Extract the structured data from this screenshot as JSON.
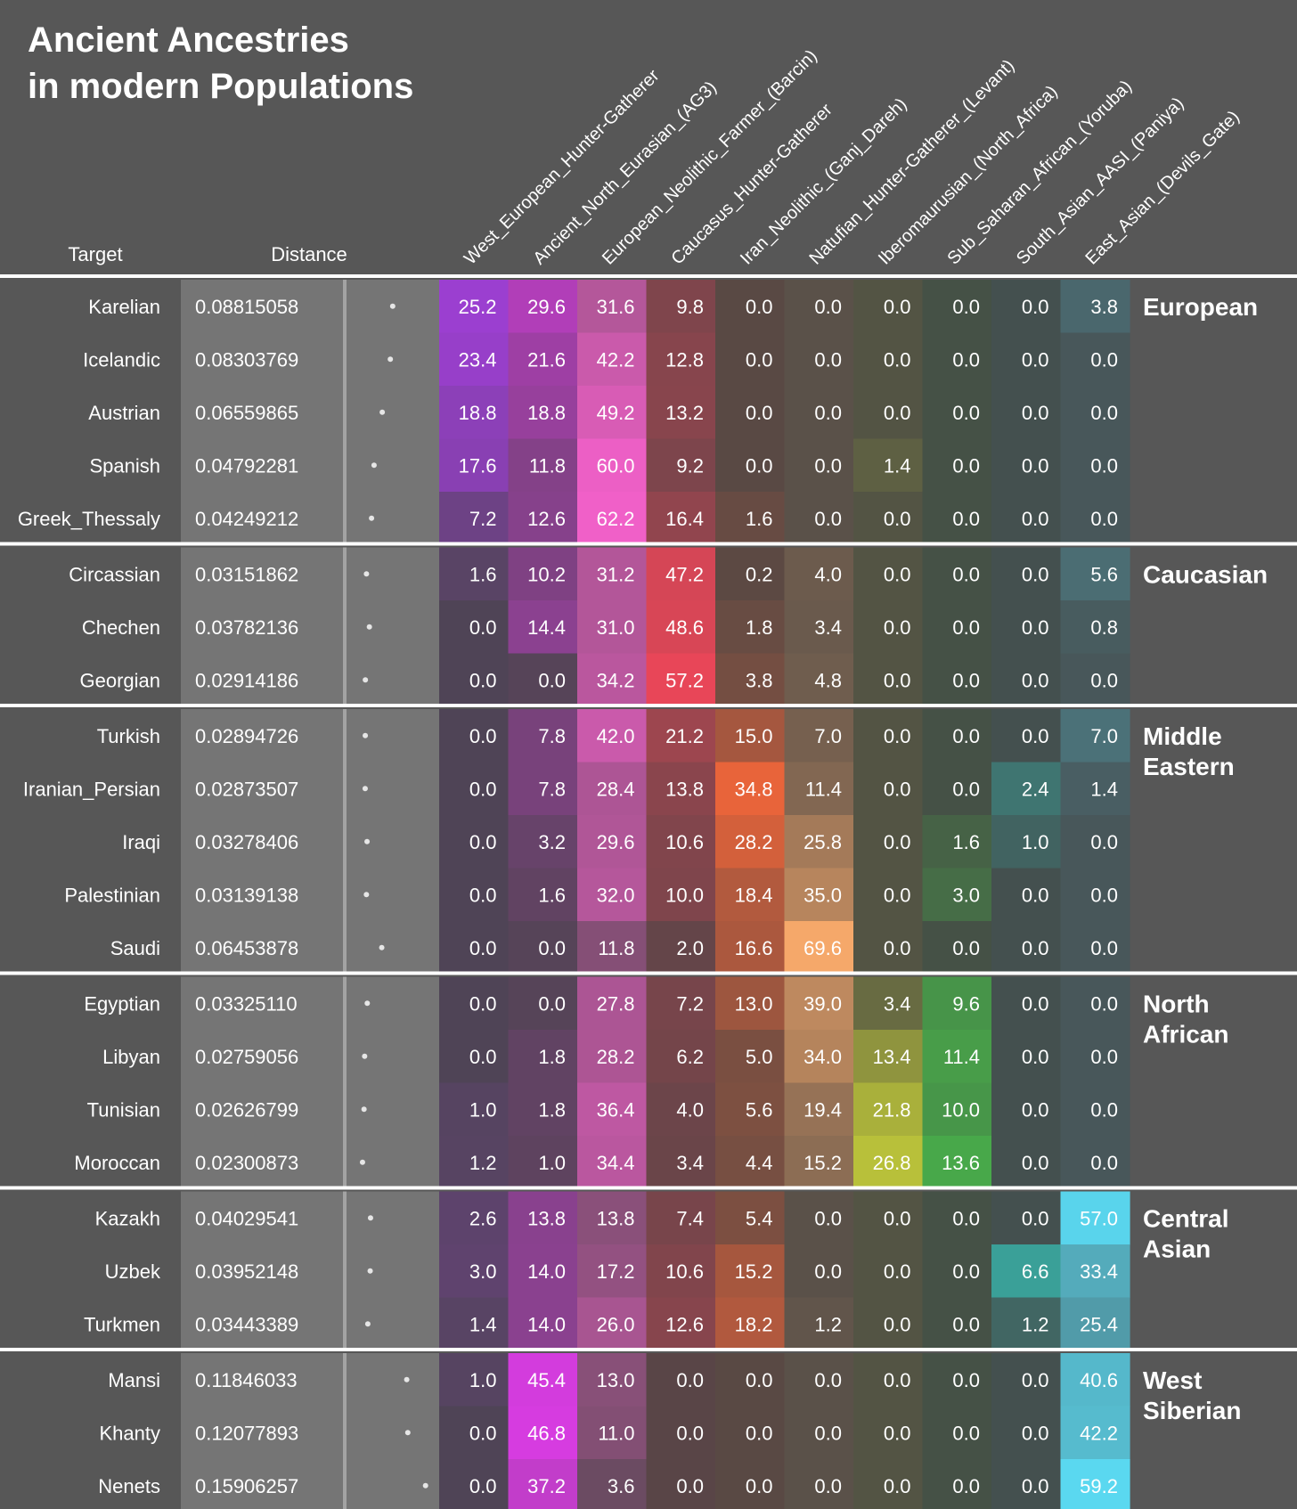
{
  "chart_data": {
    "type": "heatmap",
    "title": [
      "Ancient Ancestries",
      "in modern Populations"
    ],
    "target_header": "Target",
    "distance_header": "Distance",
    "columns": [
      "West_European_Hunter-Gatherer",
      "Ancient_North_Eurasian_(AG3)",
      "European_Neolithic_Farmer_(Barcin)",
      "Caucasus_Hunter-Gatherer",
      "Iran_Neolithic_(Ganj_Dareh)",
      "Natufian_Hunter-Gatherer_(Levant)",
      "Iberomaurusian_(North_Africa)",
      "Sub_Saharan_African_(Yoruba)",
      "South_Asian_AASI_(Paniya)",
      "East_Asian_(Devils_Gate)"
    ],
    "distance_range": [
      0,
      0.17
    ],
    "groups": [
      {
        "name": [
          "European"
        ],
        "rows": [
          {
            "target": "Karelian",
            "distance": "0.08815058",
            "values": [
              25.2,
              29.6,
              31.6,
              9.8,
              0.0,
              0.0,
              0.0,
              0.0,
              0.0,
              3.8
            ]
          },
          {
            "target": "Icelandic",
            "distance": "0.08303769",
            "values": [
              23.4,
              21.6,
              42.2,
              12.8,
              0.0,
              0.0,
              0.0,
              0.0,
              0.0,
              0.0
            ]
          },
          {
            "target": "Austrian",
            "distance": "0.06559865",
            "values": [
              18.8,
              18.8,
              49.2,
              13.2,
              0.0,
              0.0,
              0.0,
              0.0,
              0.0,
              0.0
            ]
          },
          {
            "target": "Spanish",
            "distance": "0.04792281",
            "values": [
              17.6,
              11.8,
              60.0,
              9.2,
              0.0,
              0.0,
              1.4,
              0.0,
              0.0,
              0.0
            ]
          },
          {
            "target": "Greek_Thessaly",
            "distance": "0.04249212",
            "values": [
              7.2,
              12.6,
              62.2,
              16.4,
              1.6,
              0.0,
              0.0,
              0.0,
              0.0,
              0.0
            ]
          }
        ]
      },
      {
        "name": [
          "Caucasian"
        ],
        "rows": [
          {
            "target": "Circassian",
            "distance": "0.03151862",
            "values": [
              1.6,
              10.2,
              31.2,
              47.2,
              0.2,
              4.0,
              0.0,
              0.0,
              0.0,
              5.6
            ]
          },
          {
            "target": "Chechen",
            "distance": "0.03782136",
            "values": [
              0.0,
              14.4,
              31.0,
              48.6,
              1.8,
              3.4,
              0.0,
              0.0,
              0.0,
              0.8
            ]
          },
          {
            "target": "Georgian",
            "distance": "0.02914186",
            "values": [
              0.0,
              0.0,
              34.2,
              57.2,
              3.8,
              4.8,
              0.0,
              0.0,
              0.0,
              0.0
            ]
          }
        ]
      },
      {
        "name": [
          "Middle",
          "Eastern"
        ],
        "rows": [
          {
            "target": "Turkish",
            "distance": "0.02894726",
            "values": [
              0.0,
              7.8,
              42.0,
              21.2,
              15.0,
              7.0,
              0.0,
              0.0,
              0.0,
              7.0
            ]
          },
          {
            "target": "Iranian_Persian",
            "distance": "0.02873507",
            "values": [
              0.0,
              7.8,
              28.4,
              13.8,
              34.8,
              11.4,
              0.0,
              0.0,
              2.4,
              1.4
            ]
          },
          {
            "target": "Iraqi",
            "distance": "0.03278406",
            "values": [
              0.0,
              3.2,
              29.6,
              10.6,
              28.2,
              25.8,
              0.0,
              1.6,
              1.0,
              0.0
            ]
          },
          {
            "target": "Palestinian",
            "distance": "0.03139138",
            "values": [
              0.0,
              1.6,
              32.0,
              10.0,
              18.4,
              35.0,
              0.0,
              3.0,
              0.0,
              0.0
            ]
          },
          {
            "target": "Saudi",
            "distance": "0.06453878",
            "values": [
              0.0,
              0.0,
              11.8,
              2.0,
              16.6,
              69.6,
              0.0,
              0.0,
              0.0,
              0.0
            ]
          }
        ]
      },
      {
        "name": [
          "North",
          "African"
        ],
        "rows": [
          {
            "target": "Egyptian",
            "distance": "0.03325110",
            "values": [
              0.0,
              0.0,
              27.8,
              7.2,
              13.0,
              39.0,
              3.4,
              9.6,
              0.0,
              0.0
            ]
          },
          {
            "target": "Libyan",
            "distance": "0.02759056",
            "values": [
              0.0,
              1.8,
              28.2,
              6.2,
              5.0,
              34.0,
              13.4,
              11.4,
              0.0,
              0.0
            ]
          },
          {
            "target": "Tunisian",
            "distance": "0.02626799",
            "values": [
              1.0,
              1.8,
              36.4,
              4.0,
              5.6,
              19.4,
              21.8,
              10.0,
              0.0,
              0.0
            ]
          },
          {
            "target": "Moroccan",
            "distance": "0.02300873",
            "values": [
              1.2,
              1.0,
              34.4,
              3.4,
              4.4,
              15.2,
              26.8,
              13.6,
              0.0,
              0.0
            ]
          }
        ]
      },
      {
        "name": [
          "Central",
          "Asian"
        ],
        "rows": [
          {
            "target": "Kazakh",
            "distance": "0.04029541",
            "values": [
              2.6,
              13.8,
              13.8,
              7.4,
              5.4,
              0.0,
              0.0,
              0.0,
              0.0,
              57.0
            ]
          },
          {
            "target": "Uzbek",
            "distance": "0.03952148",
            "values": [
              3.0,
              14.0,
              17.2,
              10.6,
              15.2,
              0.0,
              0.0,
              0.0,
              6.6,
              33.4
            ]
          },
          {
            "target": "Turkmen",
            "distance": "0.03443389",
            "values": [
              1.4,
              14.0,
              26.0,
              12.6,
              18.2,
              1.2,
              0.0,
              0.0,
              1.2,
              25.4
            ]
          }
        ]
      },
      {
        "name": [
          "West",
          "Siberian"
        ],
        "rows": [
          {
            "target": "Mansi",
            "distance": "0.11846033",
            "values": [
              1.0,
              45.4,
              13.0,
              0.0,
              0.0,
              0.0,
              0.0,
              0.0,
              0.0,
              40.6
            ]
          },
          {
            "target": "Khanty",
            "distance": "0.12077893",
            "values": [
              0.0,
              46.8,
              11.0,
              0.0,
              0.0,
              0.0,
              0.0,
              0.0,
              0.0,
              42.2
            ]
          },
          {
            "target": "Nenets",
            "distance": "0.15906257",
            "values": [
              0.0,
              37.2,
              3.6,
              0.0,
              0.0,
              0.0,
              0.0,
              0.0,
              0.0,
              59.2
            ]
          }
        ]
      }
    ],
    "column_colors": [
      "#9b3fd0",
      "#d63ce0",
      "#f060c8",
      "#e84658",
      "#e8643a",
      "#f5a86a",
      "#b8c03a",
      "#48a84a",
      "#3aa098",
      "#5ad8f0"
    ],
    "cell_base_color": "#454545"
  }
}
